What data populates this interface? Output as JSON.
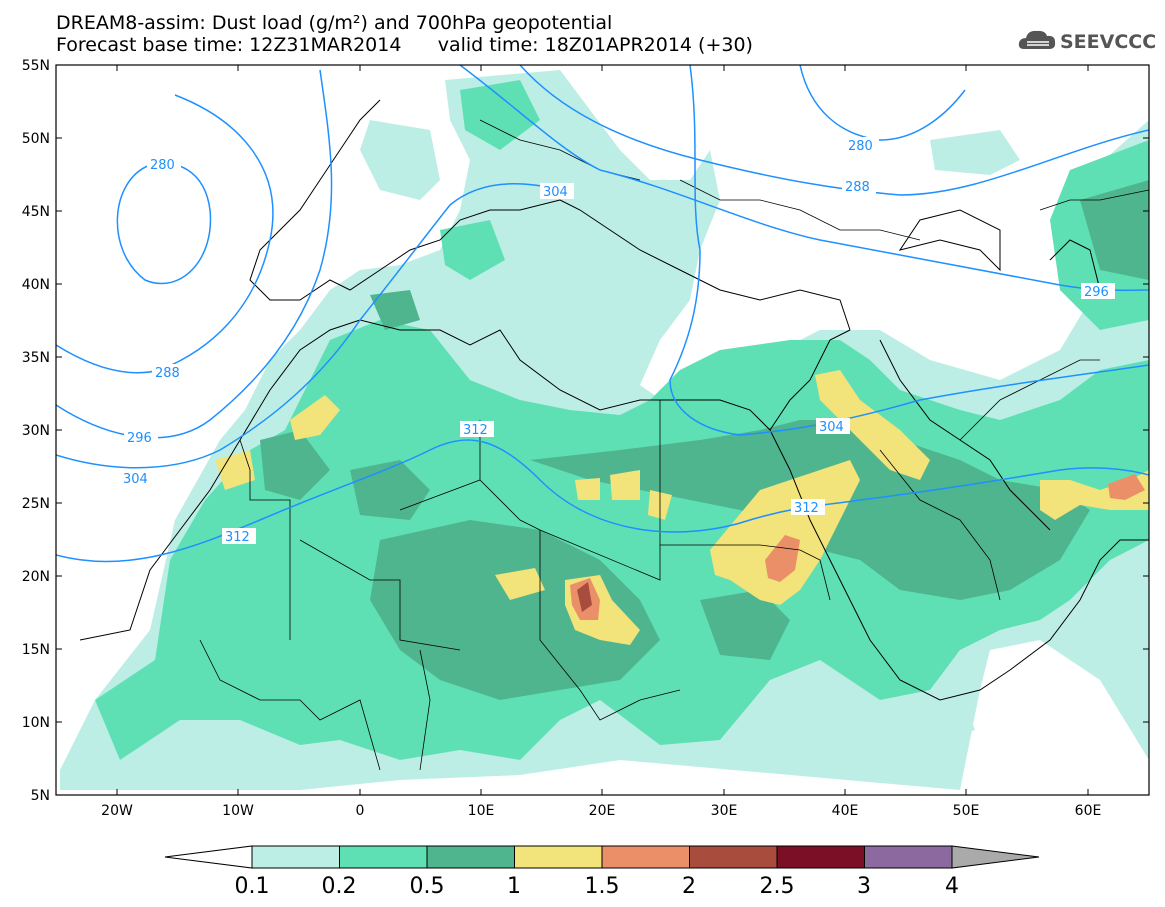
{
  "header": {
    "title": "DREAM8-assim: Dust load (g/m²) and 700hPa geopotential",
    "base_time_label": "Forecast base time: 12Z31MAR2014",
    "valid_time_label": "valid time: 18Z01APR2014 (+30)"
  },
  "logo": {
    "text": "SEEVCCC",
    "icon": "cloud-icon"
  },
  "map": {
    "lon_range": [
      -25,
      65
    ],
    "lat_range": [
      5,
      55
    ],
    "lat_ticks": [
      "55N",
      "50N",
      "45N",
      "40N",
      "35N",
      "30N",
      "25N",
      "20N",
      "15N",
      "10N",
      "5N"
    ],
    "lon_ticks": [
      "20W",
      "10W",
      "0",
      "10E",
      "20E",
      "30E",
      "40E",
      "50E",
      "60E"
    ],
    "contour_labels": [
      "280",
      "280",
      "288",
      "288",
      "296",
      "296",
      "304",
      "304",
      "304",
      "312",
      "312",
      "312"
    ],
    "contour_color": "#1e90ff"
  },
  "colorbar": {
    "levels": [
      "0.1",
      "0.2",
      "0.5",
      "1",
      "1.5",
      "2",
      "2.5",
      "3",
      "4"
    ],
    "colors": [
      "#bdeee6",
      "#5fe0b4",
      "#4fb58e",
      "#f2e37a",
      "#eb8f69",
      "#a84c3e",
      "#7a0f25",
      "#8c6aa0"
    ],
    "under_color": "#ffffff",
    "over_color": "#aaaaaa"
  }
}
